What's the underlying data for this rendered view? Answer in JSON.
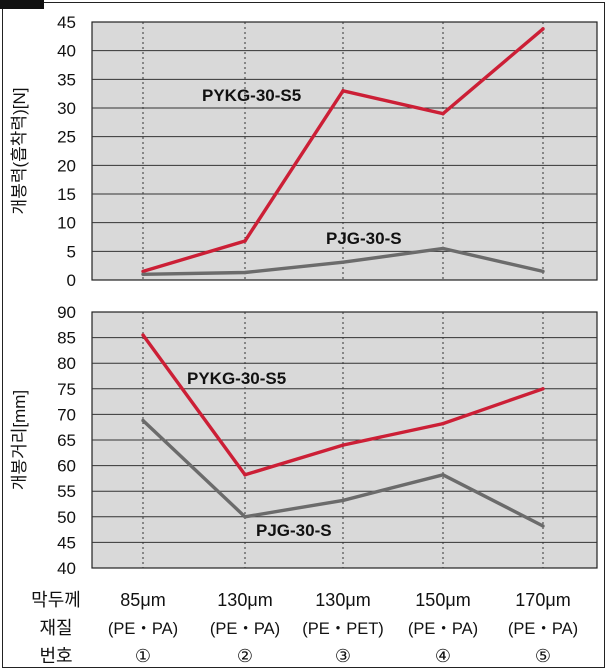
{
  "chart_data": [
    {
      "type": "line",
      "ylabel": "개봉력(흡착력)[N]",
      "ylim": [
        0,
        45
      ],
      "yticks": [
        0,
        5,
        10,
        15,
        20,
        25,
        30,
        35,
        40,
        45
      ],
      "grid": true,
      "series": [
        {
          "name": "PYKG-30-S5",
          "color": "#cc1f36",
          "values": [
            1.5,
            6.8,
            33,
            29,
            43.8
          ]
        },
        {
          "name": "PJG-30-S",
          "color": "#6b6b6b",
          "values": [
            1.0,
            1.3,
            3.1,
            5.5,
            1.5
          ]
        }
      ]
    },
    {
      "type": "line",
      "ylabel": "개봉거리[mm]",
      "ylim": [
        40,
        90
      ],
      "yticks": [
        40,
        45,
        50,
        55,
        60,
        65,
        70,
        75,
        80,
        85,
        90
      ],
      "grid": true,
      "series": [
        {
          "name": "PYKG-30-S5",
          "color": "#cc1f36",
          "values": [
            85.5,
            58.2,
            64,
            68.2,
            75
          ]
        },
        {
          "name": "PJG-30-S",
          "color": "#6b6b6b",
          "values": [
            68.8,
            50,
            53.2,
            58.2,
            48.2
          ]
        }
      ]
    }
  ],
  "table": {
    "row_labels": [
      "막두께",
      "재질",
      "번호"
    ],
    "thickness": [
      "85μm",
      "130μm",
      "130μm",
      "150μm",
      "170μm"
    ],
    "material": [
      "(PE・PA)",
      "(PE・PA)",
      "(PE・PET)",
      "(PE・PA)",
      "(PE・PA)"
    ],
    "number": [
      "①",
      "②",
      "③",
      "④",
      "⑤"
    ]
  },
  "colors": {
    "plot_bg": "#d9d9d9",
    "grid": "#333333"
  }
}
